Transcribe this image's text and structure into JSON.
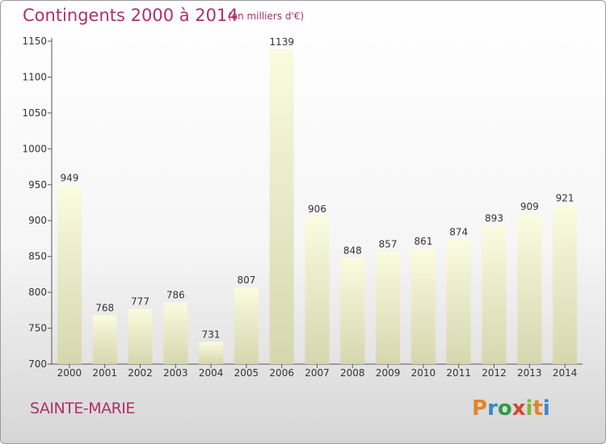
{
  "header": {
    "title": "Contingents 2000 à 2014",
    "subtitle": "(en milliers d'€)"
  },
  "footer": {
    "town": "SAINTE-MARIE",
    "logo": "Proxiti",
    "logo_colors": [
      "#e0862a",
      "#3a89c9",
      "#2f9a4a",
      "#d6452f",
      "#7bb93a"
    ]
  },
  "chart_data": {
    "type": "bar",
    "title": "Contingents 2000 à 2014",
    "subtitle": "(en milliers d'€)",
    "xlabel": "",
    "ylabel": "",
    "categories": [
      "2000",
      "2001",
      "2002",
      "2003",
      "2004",
      "2005",
      "2006",
      "2007",
      "2008",
      "2009",
      "2010",
      "2011",
      "2012",
      "2013",
      "2014"
    ],
    "values": [
      949,
      768,
      777,
      786,
      731,
      807,
      1139,
      906,
      848,
      857,
      861,
      874,
      893,
      909,
      921
    ],
    "ylim": [
      700,
      1150
    ],
    "yticks": [
      700,
      750,
      800,
      850,
      900,
      950,
      1000,
      1050,
      1100,
      1150
    ],
    "grid": false,
    "legend": "none",
    "bar_color_top": "#fbfbe0",
    "bar_color_bottom": "#d6d6ae",
    "text_color": "#333333",
    "accent_color": "#b0306a"
  }
}
